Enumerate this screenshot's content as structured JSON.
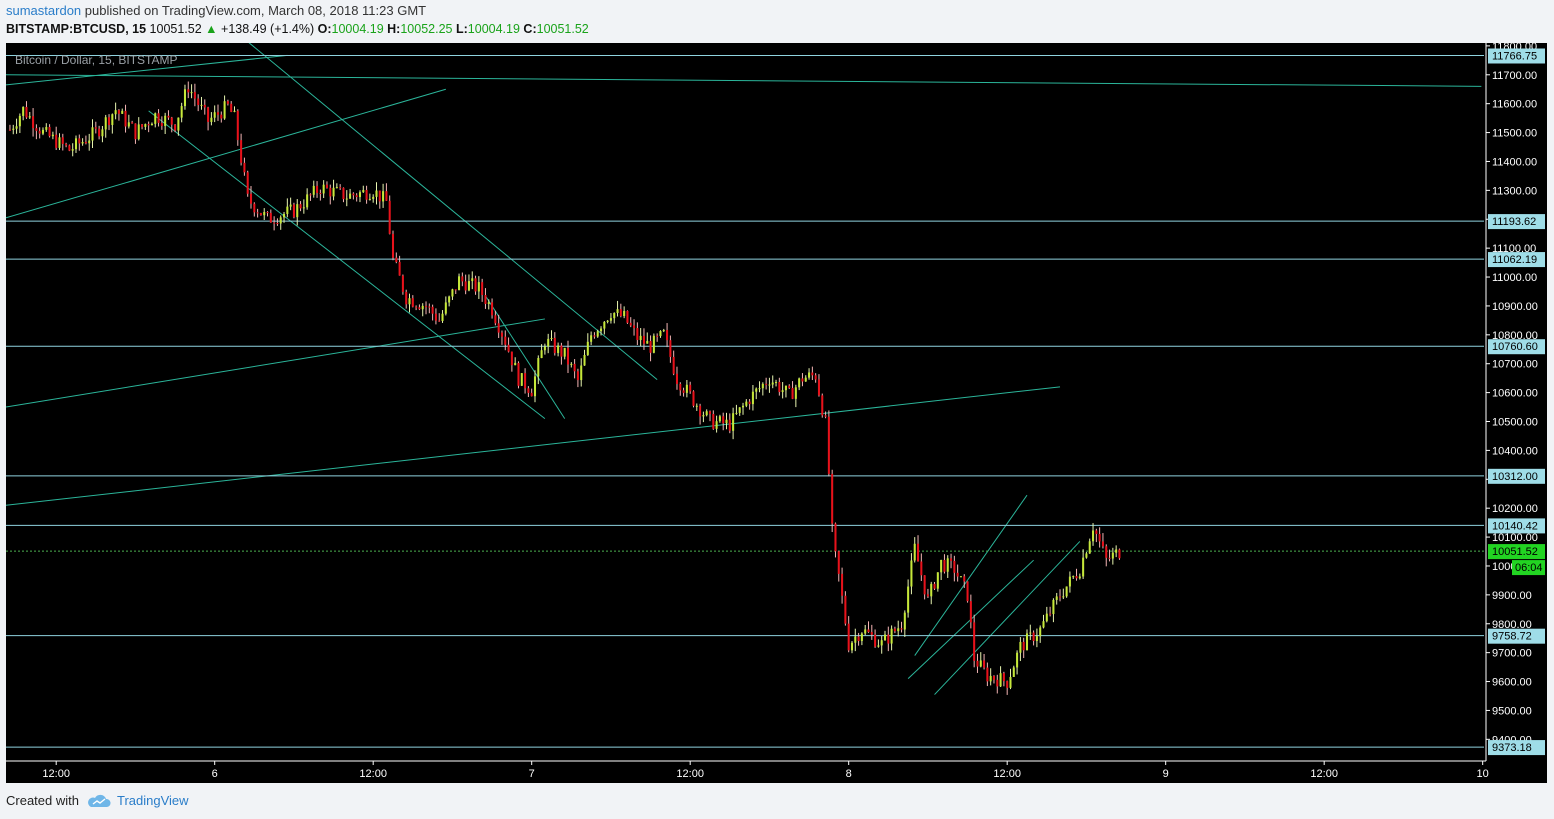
{
  "header": {
    "user": "sumastardon",
    "published": "published on TradingView.com, March 08, 2018 11:23 GMT"
  },
  "quote": {
    "symbol": "BITSTAMP:BTCUSD, 15",
    "last": "10051.52",
    "change_arrow": "▲",
    "change": "+138.49 (+1.4%)",
    "o_label": "O:",
    "o": "10004.19",
    "h_label": "H:",
    "h": "10052.25",
    "l_label": "L:",
    "l": "10004.19",
    "c_label": "C:",
    "c": "10051.52"
  },
  "footer": {
    "created": "Created with",
    "brand": "TradingView",
    "logo_icon": "tradingview-cloud-icon"
  },
  "colors": {
    "background": "#000000",
    "candle_up": "#c6e83a",
    "candle_down": "#e8121b",
    "hline": "#8fd3df",
    "trendline": "#2bb59a",
    "last_line": "#4caf50",
    "label_bg": "#9fdde8",
    "last_label_bg": "#22d422"
  },
  "chart_data": {
    "type": "candlestick",
    "title": "Bitcoin / Dollar, 15, BITSTAMP",
    "ylim": [
      9325,
      11810
    ],
    "y_ticks": [
      "11800.00",
      "11700.00",
      "11600.00",
      "11500.00",
      "11400.00",
      "11300.00",
      "11200.00",
      "11100.00",
      "11000.00",
      "10900.00",
      "10800.00",
      "10700.00",
      "10600.00",
      "10500.00",
      "10400.00",
      "10300.00",
      "10200.00",
      "10100.00",
      "10000.00",
      "9900.00",
      "9800.00",
      "9700.00",
      "9600.00",
      "9500.00",
      "9400.00"
    ],
    "x_ticks": [
      {
        "label": "12:00",
        "t": 18
      },
      {
        "label": "6",
        "t": 30
      },
      {
        "label": "12:00",
        "t": 42
      },
      {
        "label": "7",
        "t": 54
      },
      {
        "label": "12:00",
        "t": 66
      },
      {
        "label": "8",
        "t": 78
      },
      {
        "label": "12:00",
        "t": 90
      },
      {
        "label": "9",
        "t": 102
      },
      {
        "label": "12:00",
        "t": 114
      },
      {
        "label": "10",
        "t": 126
      }
    ],
    "x_range_hours": [
      14.2,
      126.1
    ],
    "price_levels": [
      {
        "label": "11766.75",
        "value": 11766.75
      },
      {
        "label": "11193.62",
        "value": 11193.62
      },
      {
        "label": "11062.19",
        "value": 11062.19
      },
      {
        "label": "10760.60",
        "value": 10760.6
      },
      {
        "label": "10312.00",
        "value": 10312.0
      },
      {
        "label": "10140.42",
        "value": 10140.42
      },
      {
        "label": "9758.72",
        "value": 9758.72
      },
      {
        "label": "9373.18",
        "value": 9373.18
      }
    ],
    "last_price": {
      "label": "10051.52",
      "value": 10051.52,
      "countdown": "06:04"
    },
    "trendlines": [
      {
        "t1": 14.2,
        "p1": 11700,
        "t2": 125.9,
        "p2": 11660
      },
      {
        "t1": 14.2,
        "p1": 11205,
        "t2": 47.5,
        "p2": 11650
      },
      {
        "t1": 14.2,
        "p1": 11665,
        "t2": 35.5,
        "p2": 11767
      },
      {
        "t1": 14.2,
        "p1": 10550,
        "t2": 55.0,
        "p2": 10855
      },
      {
        "t1": 14.2,
        "p1": 10210,
        "t2": 94.0,
        "p2": 10620
      },
      {
        "t1": 30.5,
        "p1": 11890,
        "t2": 63.5,
        "p2": 10645
      },
      {
        "t1": 25.0,
        "p1": 11575,
        "t2": 55.0,
        "p2": 10510
      },
      {
        "t1": 50.5,
        "p1": 10935,
        "t2": 56.5,
        "p2": 10510
      },
      {
        "t1": 82.5,
        "p1": 9610,
        "t2": 92.0,
        "p2": 10020
      },
      {
        "t1": 84.5,
        "p1": 9555,
        "t2": 95.5,
        "p2": 10085
      },
      {
        "t1": 83.0,
        "p1": 9690,
        "t2": 91.5,
        "p2": 10245
      }
    ],
    "waypoints": [
      [
        14.5,
        11510
      ],
      [
        15.5,
        11580
      ],
      [
        17.0,
        11500
      ],
      [
        19.0,
        11440
      ],
      [
        21.0,
        11500
      ],
      [
        22.5,
        11580
      ],
      [
        24.0,
        11500
      ],
      [
        25.5,
        11560
      ],
      [
        27.0,
        11530
      ],
      [
        28.0,
        11660
      ],
      [
        29.5,
        11540
      ],
      [
        31.0,
        11590
      ],
      [
        31.5,
        11550
      ],
      [
        32.5,
        11270
      ],
      [
        34.0,
        11200
      ],
      [
        36.0,
        11230
      ],
      [
        38.0,
        11310
      ],
      [
        40.0,
        11280
      ],
      [
        42.0,
        11300
      ],
      [
        43.0,
        11260
      ],
      [
        43.5,
        11060
      ],
      [
        44.5,
        10930
      ],
      [
        46.0,
        10900
      ],
      [
        47.0,
        10850
      ],
      [
        48.5,
        10990
      ],
      [
        50.0,
        10960
      ],
      [
        51.0,
        10890
      ],
      [
        52.0,
        10780
      ],
      [
        53.0,
        10650
      ],
      [
        54.0,
        10610
      ],
      [
        55.0,
        10780
      ],
      [
        56.5,
        10730
      ],
      [
        57.5,
        10640
      ],
      [
        58.5,
        10800
      ],
      [
        60.0,
        10880
      ],
      [
        61.0,
        10860
      ],
      [
        62.0,
        10790
      ],
      [
        63.0,
        10760
      ],
      [
        64.0,
        10800
      ],
      [
        65.0,
        10650
      ],
      [
        66.5,
        10560
      ],
      [
        67.5,
        10500
      ],
      [
        69.0,
        10490
      ],
      [
        70.5,
        10580
      ],
      [
        72.0,
        10650
      ],
      [
        73.5,
        10590
      ],
      [
        74.5,
        10650
      ],
      [
        75.5,
        10660
      ],
      [
        76.3,
        10480
      ],
      [
        76.8,
        10080
      ],
      [
        77.3,
        9950
      ],
      [
        78.0,
        9730
      ],
      [
        79.0,
        9780
      ],
      [
        80.5,
        9730
      ],
      [
        82.0,
        9800
      ],
      [
        83.0,
        10060
      ],
      [
        84.0,
        9880
      ],
      [
        85.0,
        10010
      ],
      [
        86.0,
        9990
      ],
      [
        87.0,
        9900
      ],
      [
        87.5,
        9680
      ],
      [
        88.5,
        9620
      ],
      [
        90.0,
        9600
      ],
      [
        91.0,
        9720
      ],
      [
        92.5,
        9780
      ],
      [
        94.0,
        9900
      ],
      [
        95.5,
        9990
      ],
      [
        96.5,
        10140
      ],
      [
        97.5,
        10020
      ],
      [
        98.5,
        10050
      ]
    ],
    "seed": 7
  }
}
